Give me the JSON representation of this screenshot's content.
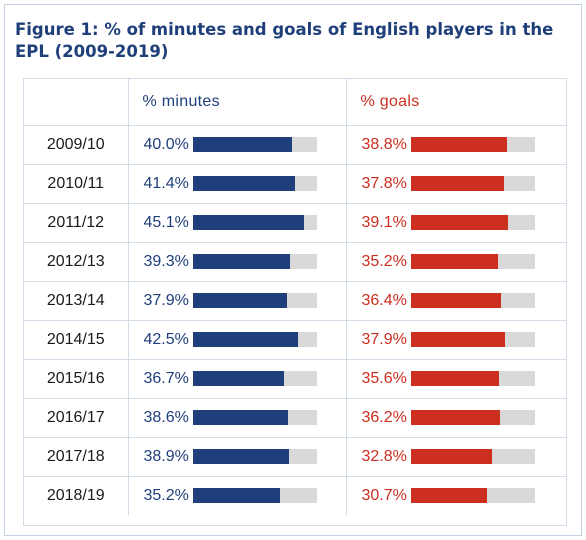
{
  "title": "Figure 1: % of minutes and goals of English players in the EPL (2009-2019)",
  "colors": {
    "title": "#1f3f7a",
    "minutes": "#1f3f7a",
    "goals": "#cc2e1f",
    "track": "#d9d9d9"
  },
  "chart_data": {
    "type": "table",
    "title": "Figure 1: % of minutes and goals of English players in the EPL (2009-2019)",
    "columns": [
      "",
      "% minutes",
      "% goals"
    ],
    "bar_max": 50,
    "rows": [
      {
        "season": "2009/10",
        "minutes": 40.0,
        "minutes_label": "40.0%",
        "goals": 38.8,
        "goals_label": "38.8%"
      },
      {
        "season": "2010/11",
        "minutes": 41.4,
        "minutes_label": "41.4%",
        "goals": 37.8,
        "goals_label": "37.8%"
      },
      {
        "season": "2011/12",
        "minutes": 45.1,
        "minutes_label": "45.1%",
        "goals": 39.1,
        "goals_label": "39.1%"
      },
      {
        "season": "2012/13",
        "minutes": 39.3,
        "minutes_label": "39.3%",
        "goals": 35.2,
        "goals_label": "35.2%"
      },
      {
        "season": "2013/14",
        "minutes": 37.9,
        "minutes_label": "37.9%",
        "goals": 36.4,
        "goals_label": "36.4%"
      },
      {
        "season": "2014/15",
        "minutes": 42.5,
        "minutes_label": "42.5%",
        "goals": 37.9,
        "goals_label": "37.9%"
      },
      {
        "season": "2015/16",
        "minutes": 36.7,
        "minutes_label": "36.7%",
        "goals": 35.6,
        "goals_label": "35.6%"
      },
      {
        "season": "2016/17",
        "minutes": 38.6,
        "minutes_label": "38.6%",
        "goals": 36.2,
        "goals_label": "36.2%"
      },
      {
        "season": "2017/18",
        "minutes": 38.9,
        "minutes_label": "38.9%",
        "goals": 32.8,
        "goals_label": "32.8%"
      },
      {
        "season": "2018/19",
        "minutes": 35.2,
        "minutes_label": "35.2%",
        "goals": 30.7,
        "goals_label": "30.7%"
      }
    ]
  }
}
